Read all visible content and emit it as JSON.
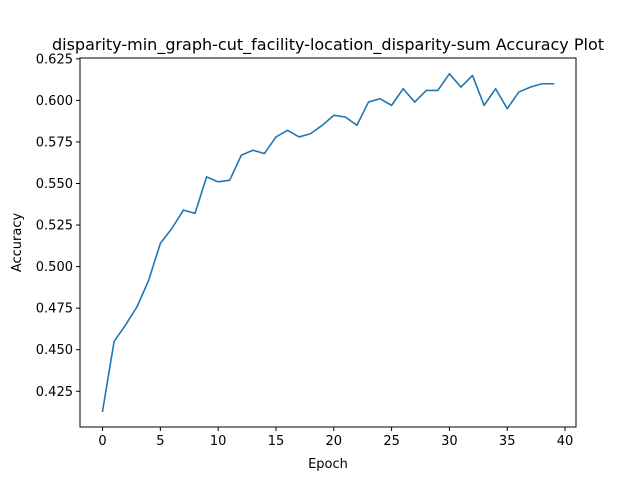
{
  "chart_data": {
    "type": "line",
    "title": "disparity-min_graph-cut_facility-location_disparity-sum Accuracy Plot",
    "xlabel": "Epoch",
    "ylabel": "Accuracy",
    "xlim": [
      -1.95,
      40.95
    ],
    "ylim": [
      0.4035,
      0.6255
    ],
    "xticks": [
      0,
      5,
      10,
      15,
      20,
      25,
      30,
      35,
      40
    ],
    "xtick_labels": [
      "0",
      "5",
      "10",
      "15",
      "20",
      "25",
      "30",
      "35",
      "40"
    ],
    "yticks": [
      0.425,
      0.45,
      0.475,
      0.5,
      0.525,
      0.55,
      0.575,
      0.6,
      0.625
    ],
    "ytick_labels": [
      "0.425",
      "0.450",
      "0.475",
      "0.500",
      "0.525",
      "0.550",
      "0.575",
      "0.600",
      "0.625"
    ],
    "grid": false,
    "legend": "none",
    "series": [
      {
        "color": "#1f77b4",
        "x": [
          0,
          1,
          2,
          3,
          4,
          5,
          6,
          7,
          8,
          9,
          10,
          11,
          12,
          13,
          14,
          15,
          16,
          17,
          18,
          19,
          20,
          21,
          22,
          23,
          24,
          25,
          26,
          27,
          28,
          29,
          30,
          31,
          32,
          33,
          34,
          35,
          36,
          37,
          38,
          39
        ],
        "values": [
          0.413,
          0.455,
          0.465,
          0.476,
          0.492,
          0.514,
          0.523,
          0.534,
          0.532,
          0.554,
          0.551,
          0.552,
          0.567,
          0.57,
          0.568,
          0.578,
          0.582,
          0.578,
          0.58,
          0.585,
          0.591,
          0.59,
          0.585,
          0.599,
          0.601,
          0.597,
          0.607,
          0.599,
          0.606,
          0.606,
          0.616,
          0.608,
          0.615,
          0.597,
          0.607,
          0.595,
          0.605,
          0.608,
          0.61,
          0.61
        ]
      }
    ]
  }
}
